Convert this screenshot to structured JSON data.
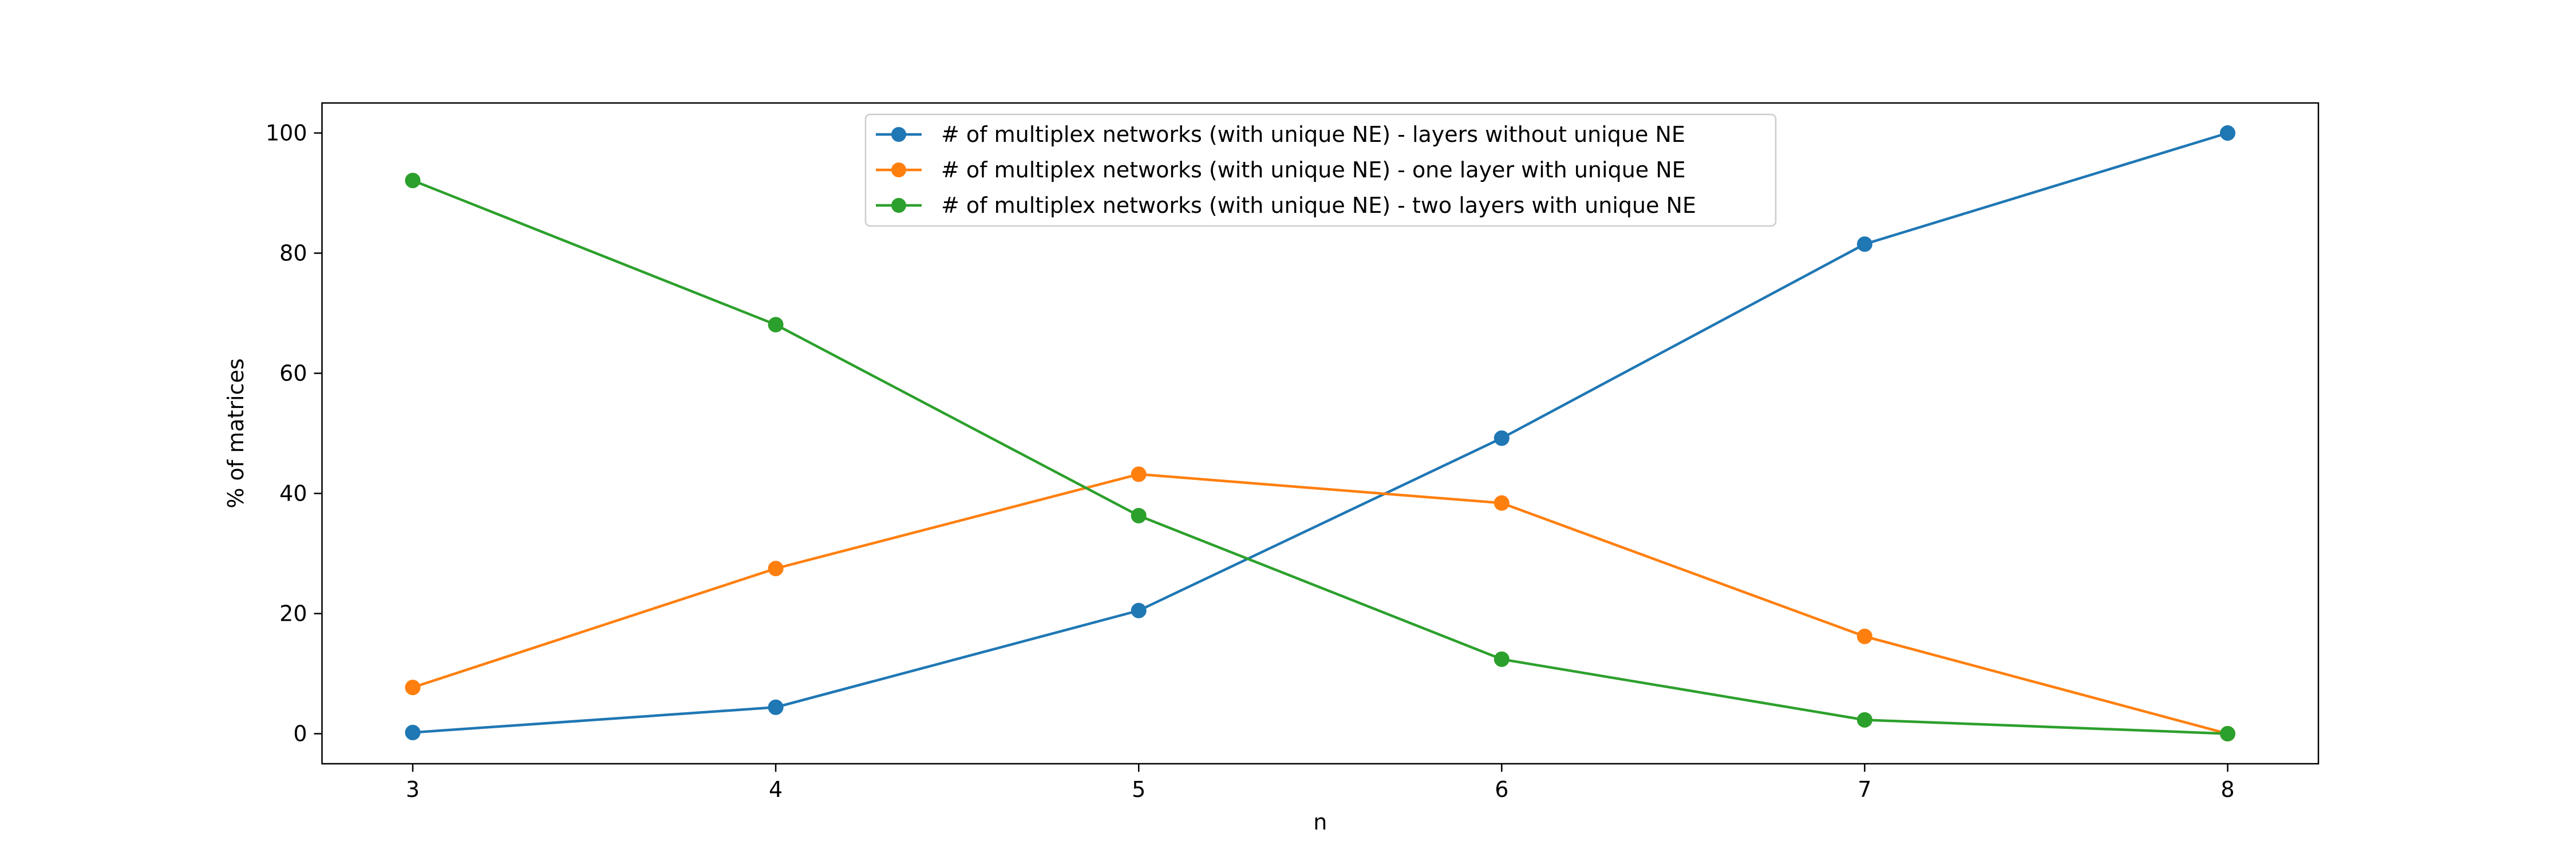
{
  "chart_data": {
    "type": "line",
    "title": "",
    "xlabel": "n",
    "ylabel": "% of matrices",
    "x": [
      3,
      4,
      5,
      6,
      7,
      8
    ],
    "xlim": [
      2.75,
      8.25
    ],
    "ylim": [
      -5,
      105
    ],
    "xticks": [
      "3",
      "4",
      "5",
      "6",
      "7",
      "8"
    ],
    "yticks": [
      "0",
      "20",
      "40",
      "60",
      "80",
      "100"
    ],
    "grid": false,
    "legend_position": "upper center",
    "series": [
      {
        "name": "# of multiplex networks (with unique NE) - layers without unique NE",
        "color": "#1f77b4",
        "values": [
          0.2,
          4.4,
          20.5,
          49.2,
          81.5,
          100
        ]
      },
      {
        "name": "# of multiplex networks (with unique NE) - one layer with unique NE",
        "color": "#ff7f0e",
        "values": [
          7.7,
          27.5,
          43.2,
          38.4,
          16.2,
          0
        ]
      },
      {
        "name": "# of multiplex networks (with unique NE) - two layers with unique NE",
        "color": "#2ca02c",
        "values": [
          92.1,
          68.1,
          36.3,
          12.4,
          2.3,
          0
        ]
      }
    ]
  }
}
